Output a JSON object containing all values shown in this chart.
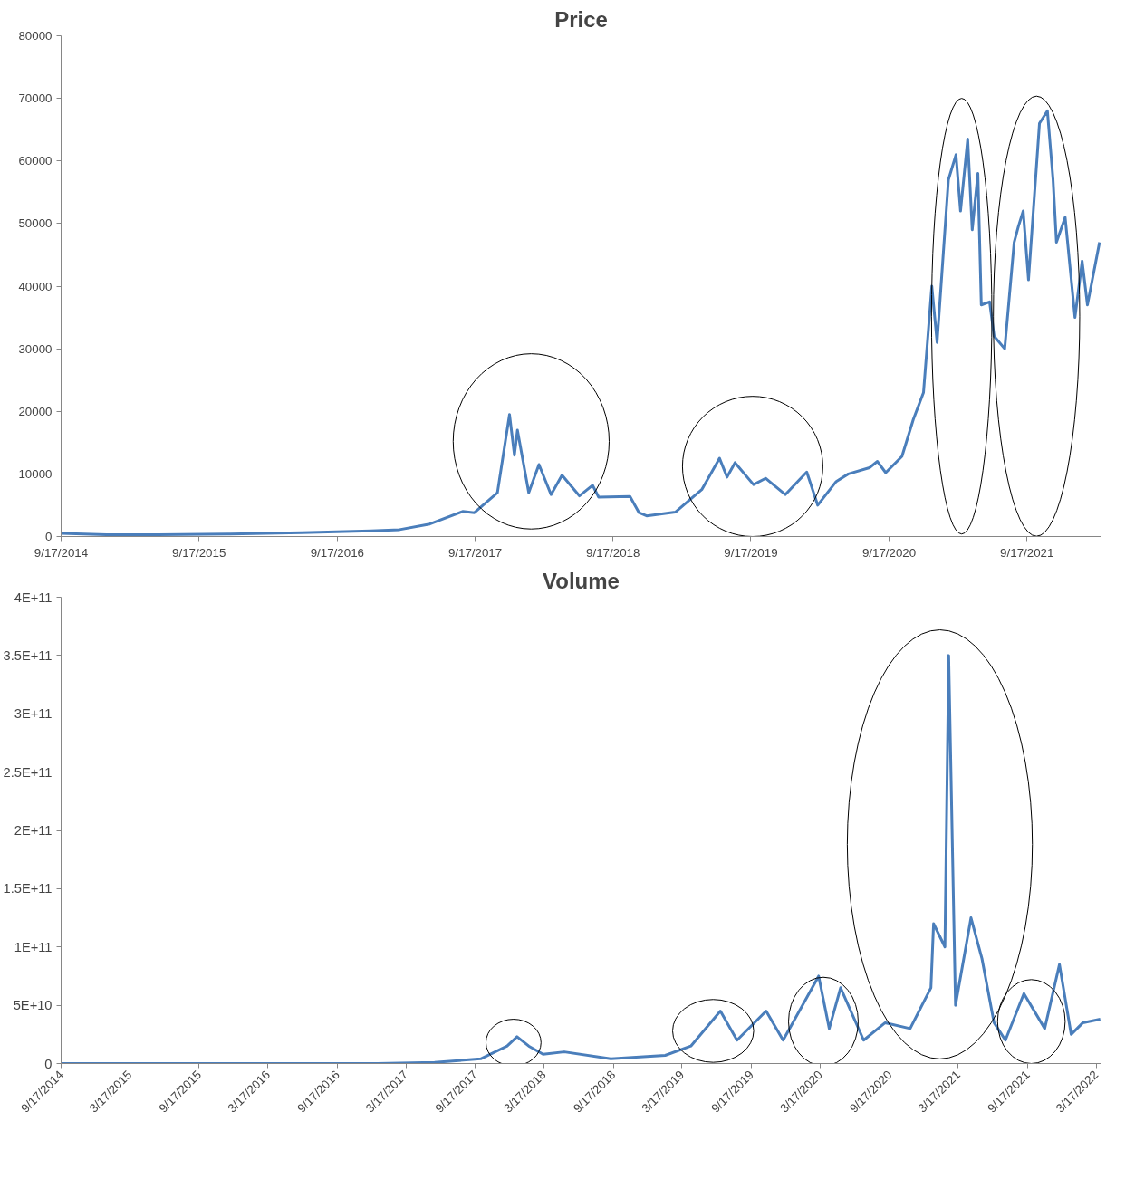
{
  "chart_data": [
    {
      "type": "line",
      "title": "Price",
      "x": [
        "2014-09-17",
        "2015-01-15",
        "2015-06-01",
        "2015-12-01",
        "2016-06-15",
        "2016-12-15",
        "2017-03-01",
        "2017-05-20",
        "2017-08-15",
        "2017-09-15",
        "2017-11-15",
        "2017-12-17",
        "2017-12-30",
        "2018-01-07",
        "2018-02-06",
        "2018-03-05",
        "2018-04-06",
        "2018-05-05",
        "2018-06-20",
        "2018-07-25",
        "2018-08-10",
        "2018-11-01",
        "2018-11-25",
        "2018-12-15",
        "2019-03-01",
        "2019-05-10",
        "2019-06-26",
        "2019-07-16",
        "2019-08-06",
        "2019-09-24",
        "2019-10-26",
        "2019-12-17",
        "2020-02-12",
        "2020-03-12",
        "2020-04-30",
        "2020-06-01",
        "2020-07-27",
        "2020-08-17",
        "2020-09-08",
        "2020-10-21",
        "2020-11-20",
        "2020-12-17",
        "2021-01-08",
        "2021-01-22",
        "2021-02-21",
        "2021-03-13",
        "2021-03-25",
        "2021-04-13",
        "2021-04-25",
        "2021-05-10",
        "2021-05-19",
        "2021-06-10",
        "2021-06-22",
        "2021-07-20",
        "2021-08-14",
        "2021-08-25",
        "2021-09-07",
        "2021-09-21",
        "2021-10-20",
        "2021-11-10",
        "2021-11-25",
        "2021-12-04",
        "2021-12-27",
        "2022-01-22",
        "2022-02-10",
        "2022-02-24",
        "2022-03-28"
      ],
      "series": [
        {
          "color": "#4a7ebb",
          "values": [
            500,
            300,
            300,
            400,
            600,
            900,
            1100,
            2000,
            4000,
            3800,
            7000,
            19500,
            13000,
            17000,
            7000,
            11500,
            6700,
            9800,
            6500,
            8200,
            6300,
            6400,
            3800,
            3300,
            3900,
            7500,
            12500,
            9500,
            11800,
            8300,
            9300,
            6700,
            10300,
            5000,
            8800,
            10000,
            11000,
            12000,
            10200,
            12800,
            18700,
            23000,
            40000,
            31000,
            57000,
            61000,
            52000,
            63500,
            49000,
            58000,
            37000,
            37500,
            32000,
            30000,
            47000,
            49500,
            52000,
            41000,
            66000,
            68000,
            57000,
            47000,
            51000,
            35000,
            44000,
            37000,
            47000
          ]
        }
      ],
      "xlim": [
        "2014-09-17",
        "2022-04-01"
      ],
      "xticks": [
        {
          "value": "2014-09-17",
          "label": "9/17/2014"
        },
        {
          "value": "2015-09-17",
          "label": "9/17/2015"
        },
        {
          "value": "2016-09-17",
          "label": "9/17/2016"
        },
        {
          "value": "2017-09-17",
          "label": "9/17/2017"
        },
        {
          "value": "2018-09-17",
          "label": "9/17/2018"
        },
        {
          "value": "2019-09-17",
          "label": "9/17/2019"
        },
        {
          "value": "2020-09-17",
          "label": "9/17/2020"
        },
        {
          "value": "2021-09-17",
          "label": "9/17/2021"
        }
      ],
      "ylim": [
        0,
        80000
      ],
      "yticks": [
        0,
        10000,
        20000,
        30000,
        40000,
        50000,
        60000,
        70000,
        80000
      ],
      "grid": false
    },
    {
      "type": "line",
      "title": "Volume",
      "x": [
        "2014-09-17",
        "2015-06-01",
        "2016-06-01",
        "2017-01-01",
        "2017-06-01",
        "2017-10-01",
        "2017-12-10",
        "2018-01-05",
        "2018-02-05",
        "2018-03-15",
        "2018-05-10",
        "2018-09-10",
        "2019-02-01",
        "2019-04-10",
        "2019-06-27",
        "2019-08-10",
        "2019-10-26",
        "2019-12-10",
        "2020-03-13",
        "2020-04-10",
        "2020-05-10",
        "2020-07-10",
        "2020-09-05",
        "2020-11-10",
        "2021-01-04",
        "2021-01-11",
        "2021-02-10",
        "2021-02-20",
        "2021-03-10",
        "2021-04-20",
        "2021-05-19",
        "2021-06-20",
        "2021-07-20",
        "2021-09-07",
        "2021-11-01",
        "2021-12-10",
        "2022-01-10",
        "2022-02-10",
        "2022-03-28"
      ],
      "series": [
        {
          "color": "#4a7ebb",
          "values": [
            0,
            0,
            0,
            0,
            1000000000,
            4000000000,
            15000000000,
            23000000000,
            15000000000,
            8000000000,
            10000000000,
            4000000000,
            7000000000,
            15000000000,
            45000000000,
            20000000000,
            45000000000,
            20000000000,
            75000000000,
            30000000000,
            65000000000,
            20000000000,
            35000000000,
            30000000000,
            65000000000,
            120000000000,
            100000000000,
            350000000000,
            50000000000,
            125000000000,
            90000000000,
            35000000000,
            20000000000,
            60000000000,
            30000000000,
            85000000000,
            25000000000,
            35000000000,
            38000000000
          ]
        }
      ],
      "xlim": [
        "2014-09-17",
        "2022-03-30"
      ],
      "xticks": [
        {
          "value": "2014-09-17",
          "label": "9/17/2014"
        },
        {
          "value": "2015-03-17",
          "label": "3/17/2015"
        },
        {
          "value": "2015-09-17",
          "label": "9/17/2015"
        },
        {
          "value": "2016-03-17",
          "label": "3/17/2016"
        },
        {
          "value": "2016-09-17",
          "label": "9/17/2016"
        },
        {
          "value": "2017-03-17",
          "label": "3/17/2017"
        },
        {
          "value": "2017-09-17",
          "label": "9/17/2017"
        },
        {
          "value": "2018-03-17",
          "label": "3/17/2018"
        },
        {
          "value": "2018-09-17",
          "label": "9/17/2018"
        },
        {
          "value": "2019-03-17",
          "label": "3/17/2019"
        },
        {
          "value": "2019-09-17",
          "label": "9/17/2019"
        },
        {
          "value": "2020-03-17",
          "label": "3/17/2020"
        },
        {
          "value": "2020-09-17",
          "label": "9/17/2020"
        },
        {
          "value": "2021-03-17",
          "label": "3/17/2021"
        },
        {
          "value": "2021-09-17",
          "label": "9/17/2021"
        },
        {
          "value": "2022-03-17",
          "label": "3/17/2022"
        }
      ],
      "ylim": [
        0,
        400000000000
      ],
      "yticks": [
        {
          "value": 0,
          "label": "0"
        },
        {
          "value": 50000000000,
          "label": "5E+10"
        },
        {
          "value": 100000000000,
          "label": "1E+11"
        },
        {
          "value": 150000000000,
          "label": "1.5E+11"
        },
        {
          "value": 200000000000,
          "label": "2E+11"
        },
        {
          "value": 250000000000,
          "label": "2.5E+11"
        },
        {
          "value": 300000000000,
          "label": "3E+11"
        },
        {
          "value": 350000000000,
          "label": "3.5E+11"
        },
        {
          "value": 400000000000,
          "label": "4E+11"
        }
      ],
      "grid": false
    }
  ]
}
